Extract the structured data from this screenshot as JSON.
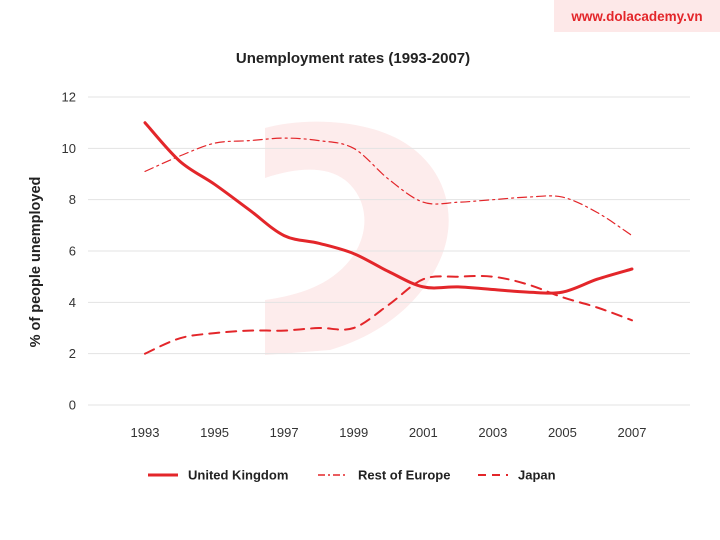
{
  "watermark": {
    "url": "www.dolacademy.vn"
  },
  "chart_data": {
    "type": "line",
    "title": "Unemployment rates (1993-2007)",
    "xlabel": "",
    "ylabel": "% of people unemployed",
    "x": [
      1993,
      1994,
      1995,
      1996,
      1997,
      1998,
      1999,
      2000,
      2001,
      2002,
      2003,
      2004,
      2005,
      2006,
      2007
    ],
    "x_tick_labels": [
      "1993",
      "1995",
      "1997",
      "1999",
      "2001",
      "2003",
      "2005",
      "2007"
    ],
    "y_tick_labels": [
      "0",
      "2",
      "4",
      "6",
      "8",
      "10",
      "12"
    ],
    "ylim": [
      0,
      12
    ],
    "grid": true,
    "legend_position": "bottom",
    "colors": {
      "series": "#e3262a",
      "grid": "#e3e3e3",
      "watermark_logo": "#fdecec"
    },
    "series": [
      {
        "name": "United Kingdom",
        "style": "solid",
        "values": [
          11.0,
          9.5,
          8.6,
          7.6,
          6.6,
          6.3,
          5.9,
          5.2,
          4.6,
          4.6,
          4.5,
          4.4,
          4.4,
          4.9,
          5.3
        ]
      },
      {
        "name": "Rest of Europe",
        "style": "dash-dot",
        "values": [
          9.1,
          9.7,
          10.2,
          10.3,
          10.4,
          10.3,
          10.0,
          8.8,
          7.9,
          7.9,
          8.0,
          8.1,
          8.1,
          7.5,
          6.6
        ]
      },
      {
        "name": "Japan",
        "style": "dashed",
        "values": [
          2.0,
          2.6,
          2.8,
          2.9,
          2.9,
          3.0,
          3.0,
          3.9,
          4.9,
          5.0,
          5.0,
          4.7,
          4.2,
          3.8,
          3.3
        ]
      }
    ]
  }
}
